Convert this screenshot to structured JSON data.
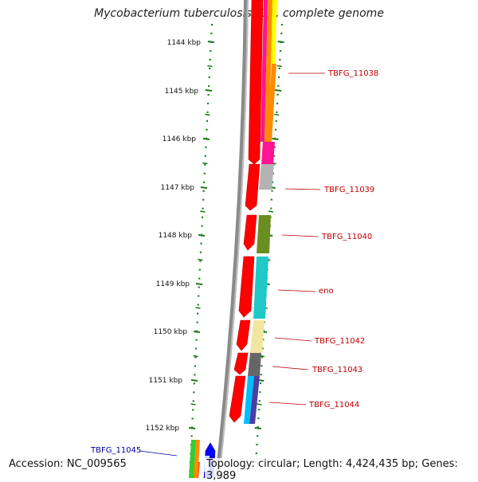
{
  "title": "Mycobacterium tuberculosis F11, complete genome",
  "footer": {
    "accession": "Accession: NC_009565",
    "summary": "Topology: circular; Length: 4,424,435 bp; Genes: 3,989"
  },
  "ticks": [
    "1144 kbp",
    "1145 kbp",
    "1146 kbp",
    "1147 kbp",
    "1148 kbp",
    "1149 kbp",
    "1150 kbp",
    "1151 kbp",
    "1152 kbp"
  ],
  "gene_labels": [
    "TBFG_11038",
    "TBFG_11039",
    "TBFG_11040",
    "eno",
    "TBFG_11042",
    "TBFG_11043",
    "TBFG_11044",
    "TBFG_11045"
  ],
  "colors": {
    "cds": "#ff0000",
    "backbone": "#808080",
    "tick": "#1a7a1a",
    "label_red": "#c00000",
    "label_blue": "#0000a0"
  }
}
